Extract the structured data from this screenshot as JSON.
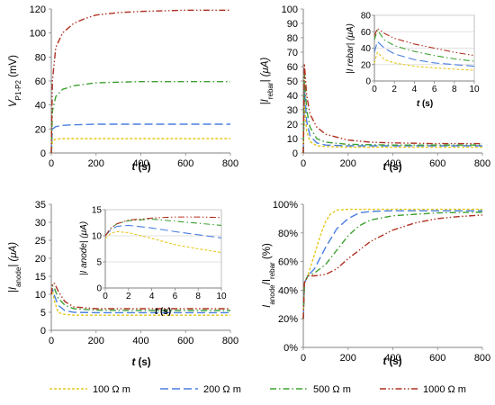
{
  "figure": {
    "legend": [
      {
        "label": "100 Ω m",
        "color": "#e6c81e",
        "dash": "short-dash"
      },
      {
        "label": "200 Ω m",
        "color": "#4a7fe0",
        "dash": "long-dash"
      },
      {
        "label": "500 Ω m",
        "color": "#3da030",
        "dash": "dash-dot"
      },
      {
        "label": "1000 Ω m",
        "color": "#b03020",
        "dash": "dash-dot-dot"
      }
    ]
  },
  "chart_data": [
    {
      "id": "a",
      "type": "line",
      "xlabel": "t (s)",
      "ylabel": "V_P1-P2 (mV)",
      "xlim": [
        0,
        800
      ],
      "ylim": [
        0,
        120
      ],
      "xticks": [
        "0",
        "200",
        "400",
        "600",
        "800"
      ],
      "yticks": [
        "0",
        "20",
        "40",
        "60",
        "80",
        "100",
        "120"
      ],
      "grid": false,
      "series": [
        {
          "name": "100 Ω m",
          "x": [
            0,
            5,
            20,
            50,
            100,
            200,
            400,
            600,
            800
          ],
          "y": [
            0,
            10,
            11.5,
            12,
            12,
            12,
            12,
            12,
            12
          ]
        },
        {
          "name": "200 Ω m",
          "x": [
            0,
            5,
            20,
            50,
            100,
            200,
            400,
            600,
            800
          ],
          "y": [
            0,
            20,
            22,
            23,
            23.5,
            24,
            24,
            24,
            24
          ]
        },
        {
          "name": "500 Ω m",
          "x": [
            0,
            5,
            20,
            50,
            100,
            200,
            300,
            400,
            600,
            800
          ],
          "y": [
            0,
            35,
            47,
            53,
            56,
            58.5,
            59,
            59.5,
            59.5,
            59.5
          ]
        },
        {
          "name": "1000 Ω m",
          "x": [
            0,
            5,
            20,
            50,
            100,
            150,
            200,
            300,
            400,
            500,
            600,
            800
          ],
          "y": [
            0,
            60,
            88,
            100,
            108,
            112,
            115,
            117,
            118,
            118.5,
            119,
            119
          ]
        }
      ]
    },
    {
      "id": "b",
      "type": "line",
      "xlabel": "t (s)",
      "ylabel": "|I_rebar| (μA)",
      "xlim": [
        0,
        800
      ],
      "ylim": [
        0,
        100
      ],
      "xticks": [
        "0",
        "200",
        "400",
        "600",
        "800"
      ],
      "yticks": [
        "0",
        "10",
        "20",
        "30",
        "40",
        "50",
        "60",
        "70",
        "80",
        "90",
        "100"
      ],
      "grid": false,
      "series": [
        {
          "name": "100 Ω m",
          "x": [
            0,
            5,
            15,
            30,
            60,
            100,
            200,
            400,
            600,
            800
          ],
          "y": [
            0,
            35,
            15,
            8,
            5,
            4.5,
            4,
            4,
            4,
            4
          ]
        },
        {
          "name": "200 Ω m",
          "x": [
            0,
            5,
            15,
            30,
            60,
            100,
            200,
            400,
            600,
            800
          ],
          "y": [
            0,
            45,
            22,
            12,
            7,
            5.5,
            5,
            5,
            5,
            5
          ]
        },
        {
          "name": "500 Ω m",
          "x": [
            0,
            5,
            15,
            30,
            60,
            100,
            200,
            400,
            600,
            800
          ],
          "y": [
            0,
            55,
            30,
            18,
            10,
            7.5,
            6,
            5.5,
            5.5,
            5.5
          ]
        },
        {
          "name": "1000 Ω m",
          "x": [
            0,
            5,
            15,
            30,
            60,
            100,
            200,
            300,
            400,
            600,
            800
          ],
          "y": [
            0,
            62,
            40,
            27,
            18,
            13,
            9,
            7.5,
            7,
            6.5,
            6.5
          ]
        }
      ]
    },
    {
      "id": "b-inset",
      "type": "line",
      "xlabel": "t (s)",
      "ylabel": "|I rebar| (μA)",
      "xlim": [
        0,
        10
      ],
      "ylim": [
        0,
        80
      ],
      "xticks": [
        "0",
        "2",
        "4",
        "6",
        "8",
        "10"
      ],
      "yticks": [
        "0",
        "20",
        "40",
        "60",
        "80"
      ],
      "grid": true,
      "series": [
        {
          "name": "100 Ω m",
          "x": [
            0,
            0.3,
            1,
            2,
            4,
            6,
            8,
            10
          ],
          "y": [
            22,
            35,
            26,
            22,
            18,
            16,
            14.5,
            13
          ]
        },
        {
          "name": "200 Ω m",
          "x": [
            0,
            0.3,
            1,
            2,
            4,
            6,
            8,
            10
          ],
          "y": [
            35,
            48,
            40,
            33,
            26,
            22,
            20,
            18
          ]
        },
        {
          "name": "500 Ω m",
          "x": [
            0,
            0.3,
            1,
            2,
            4,
            6,
            8,
            10
          ],
          "y": [
            50,
            62,
            50,
            43,
            36,
            31,
            27,
            24
          ]
        },
        {
          "name": "1000 Ω m",
          "x": [
            0,
            0.3,
            1,
            2,
            4,
            6,
            8,
            10
          ],
          "y": [
            55,
            64,
            58,
            52,
            45,
            40,
            35,
            31
          ]
        }
      ]
    },
    {
      "id": "c",
      "type": "line",
      "xlabel": "t (s)",
      "ylabel": "|I_anode| (μA)",
      "xlim": [
        0,
        800
      ],
      "ylim": [
        0,
        35
      ],
      "xticks": [
        "0",
        "200",
        "400",
        "600",
        "800"
      ],
      "yticks": [
        "0",
        "5",
        "10",
        "15",
        "20",
        "25",
        "30",
        "35"
      ],
      "grid": false,
      "series": [
        {
          "name": "100 Ω m",
          "x": [
            0,
            5,
            15,
            30,
            50,
            100,
            200,
            400,
            600,
            800
          ],
          "y": [
            10,
            11,
            8,
            5,
            4.5,
            4.2,
            4.2,
            4.2,
            4.2,
            4.2
          ]
        },
        {
          "name": "200 Ω m",
          "x": [
            0,
            5,
            15,
            30,
            60,
            100,
            200,
            400,
            600,
            800
          ],
          "y": [
            10,
            11.5,
            9.5,
            7,
            5.5,
            5,
            4.9,
            4.9,
            4.9,
            4.9
          ]
        },
        {
          "name": "500 Ω m",
          "x": [
            0,
            5,
            15,
            30,
            60,
            100,
            200,
            400,
            600,
            800
          ],
          "y": [
            10,
            12.5,
            11.5,
            9,
            7,
            6,
            5.6,
            5.5,
            5.5,
            5.5
          ]
        },
        {
          "name": "1000 Ω m",
          "x": [
            0,
            5,
            15,
            30,
            60,
            100,
            200,
            400,
            600,
            800
          ],
          "y": [
            10,
            13,
            13,
            11,
            8,
            6.5,
            6,
            6,
            6,
            6
          ]
        }
      ]
    },
    {
      "id": "c-inset",
      "type": "line",
      "xlabel": "t (s)",
      "ylabel": "|I anode| (μA)",
      "xlim": [
        0,
        10
      ],
      "ylim": [
        0,
        15
      ],
      "xticks": [
        "0",
        "2",
        "4",
        "6",
        "8",
        "10"
      ],
      "yticks": [
        "0",
        "5",
        "10",
        "15"
      ],
      "grid": true,
      "series": [
        {
          "name": "100 Ω m",
          "x": [
            0,
            0.5,
            1,
            2,
            4,
            6,
            8,
            10
          ],
          "y": [
            9.5,
            10.5,
            10.8,
            10.6,
            9.5,
            8.3,
            7.5,
            6.8
          ]
        },
        {
          "name": "200 Ω m",
          "x": [
            0,
            0.5,
            1,
            2,
            4,
            6,
            8,
            10
          ],
          "y": [
            10,
            11.2,
            11.8,
            12,
            11.5,
            10.8,
            10.2,
            9.6
          ]
        },
        {
          "name": "500 Ω m",
          "x": [
            0,
            0.5,
            1,
            2,
            4,
            6,
            8,
            10
          ],
          "y": [
            10,
            11.5,
            12.3,
            12.9,
            13.2,
            12.8,
            12.4,
            12
          ]
        },
        {
          "name": "1000 Ω m",
          "x": [
            0,
            0.5,
            1,
            2,
            4,
            6,
            8,
            10
          ],
          "y": [
            10,
            11.5,
            12.3,
            13,
            13.4,
            13.6,
            13.6,
            13.5
          ]
        }
      ]
    },
    {
      "id": "d",
      "type": "line",
      "xlabel": "t (s)",
      "ylabel": "I_anode/I_rebar (%)",
      "xlim": [
        0,
        800
      ],
      "ylim": [
        0,
        100
      ],
      "xticks": [
        "0",
        "200",
        "400",
        "600",
        "800"
      ],
      "yticks": [
        "0%",
        "20%",
        "40%",
        "60%",
        "80%",
        "100%"
      ],
      "grid": false,
      "series": [
        {
          "name": "100 Ω m",
          "x": [
            0,
            5,
            20,
            50,
            80,
            100,
            120,
            150,
            200,
            400,
            600,
            800
          ],
          "y": [
            20,
            45,
            50,
            65,
            80,
            88,
            93,
            96,
            96.5,
            96.5,
            96.5,
            96.5
          ]
        },
        {
          "name": "200 Ω m",
          "x": [
            0,
            5,
            20,
            50,
            100,
            150,
            200,
            250,
            300,
            400,
            600,
            800
          ],
          "y": [
            20,
            45,
            50,
            55,
            70,
            83,
            90,
            94,
            95,
            95.5,
            95.5,
            95.5
          ]
        },
        {
          "name": "500 Ω m",
          "x": [
            0,
            5,
            20,
            50,
            100,
            150,
            200,
            250,
            300,
            400,
            500,
            600,
            800
          ],
          "y": [
            20,
            45,
            50,
            52,
            58,
            68,
            78,
            85,
            89,
            92,
            93,
            94,
            94.5
          ]
        },
        {
          "name": "1000 Ω m",
          "x": [
            0,
            5,
            20,
            50,
            100,
            150,
            200,
            250,
            300,
            400,
            500,
            600,
            700,
            800
          ],
          "y": [
            20,
            45,
            50,
            50,
            51,
            55,
            62,
            68,
            74,
            82,
            87,
            90,
            91.5,
            92.5
          ]
        }
      ]
    }
  ]
}
